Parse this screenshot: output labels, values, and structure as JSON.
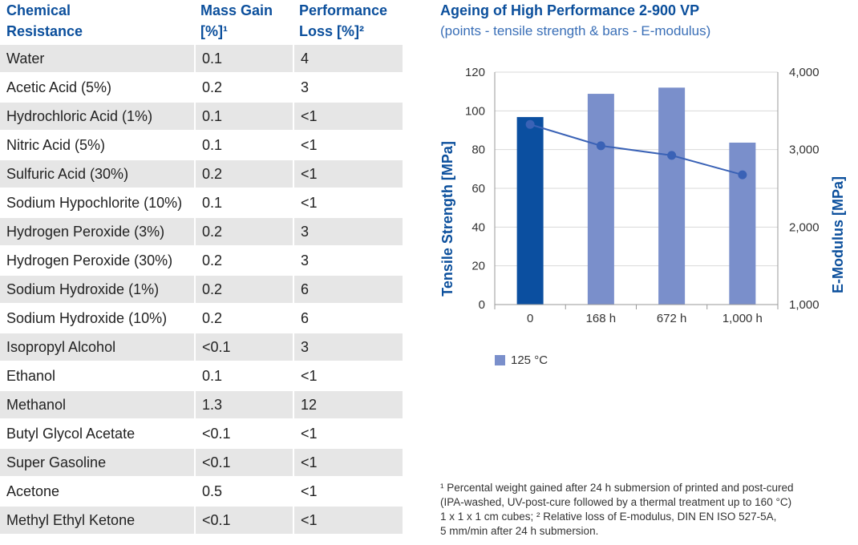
{
  "table": {
    "headers": {
      "chemical": [
        "Chemical",
        "Resistance"
      ],
      "mass_gain": [
        "Mass Gain",
        "[%]¹"
      ],
      "performance_loss": [
        "Performance",
        "Loss [%]²"
      ]
    },
    "rows": [
      {
        "chemical": "Water",
        "mass_gain": "0.1",
        "performance_loss": "4"
      },
      {
        "chemical": "Acetic Acid (5%)",
        "mass_gain": "0.2",
        "performance_loss": "3"
      },
      {
        "chemical": "Hydrochloric Acid (1%)",
        "mass_gain": "0.1",
        "performance_loss": "<1"
      },
      {
        "chemical": "Nitric Acid (5%)",
        "mass_gain": "0.1",
        "performance_loss": "<1"
      },
      {
        "chemical": "Sulfuric Acid (30%)",
        "mass_gain": "0.2",
        "performance_loss": "<1"
      },
      {
        "chemical": "Sodium Hypochlorite (10%)",
        "mass_gain": "0.1",
        "performance_loss": "<1"
      },
      {
        "chemical": "Hydrogen Peroxide (3%)",
        "mass_gain": "0.2",
        "performance_loss": "3"
      },
      {
        "chemical": "Hydrogen Peroxide (30%)",
        "mass_gain": "0.2",
        "performance_loss": "3"
      },
      {
        "chemical": "Sodium Hydroxide (1%)",
        "mass_gain": "0.2",
        "performance_loss": "6"
      },
      {
        "chemical": "Sodium Hydroxide (10%)",
        "mass_gain": "0.2",
        "performance_loss": "6"
      },
      {
        "chemical": "Isopropyl Alcohol",
        "mass_gain": "<0.1",
        "performance_loss": "3"
      },
      {
        "chemical": "Ethanol",
        "mass_gain": "0.1",
        "performance_loss": "<1"
      },
      {
        "chemical": "Methanol",
        "mass_gain": "1.3",
        "performance_loss": "12"
      },
      {
        "chemical": "Butyl Glycol Acetate",
        "mass_gain": "<0.1",
        "performance_loss": "<1"
      },
      {
        "chemical": "Super Gasoline",
        "mass_gain": "<0.1",
        "performance_loss": "<1"
      },
      {
        "chemical": "Acetone",
        "mass_gain": "0.5",
        "performance_loss": "<1"
      },
      {
        "chemical": "Methyl Ethyl Ketone",
        "mass_gain": "<0.1",
        "performance_loss": "<1"
      }
    ]
  },
  "colors": {
    "header_text": "#0b4f9c",
    "row_shade": "#e6e6e6",
    "bar_first": "#0b4fa0",
    "bar_other": "#7a8fcb",
    "line": "#3a62b6",
    "axis": "#999999",
    "grid": "#d9d9d9"
  },
  "chart_data": {
    "type": "bar",
    "title": "Ageing of High Performance 2-900 VP",
    "subtitle": "(points - tensile strength & bars - E-modulus)",
    "categories": [
      "0",
      "168 h",
      "672 h",
      "1,000 h"
    ],
    "series": [
      {
        "name": "125 °C",
        "kind": "bar",
        "axis": "right",
        "values": [
          3420,
          3720,
          3800,
          3090
        ]
      },
      {
        "kind": "line",
        "axis": "left",
        "values": [
          93,
          82,
          77,
          67
        ]
      }
    ],
    "ylabel_left": "Tensile Strength [MPa]",
    "ylabel_right": "E-Modulus [MPa]",
    "ylim_left": [
      0,
      120
    ],
    "ylim_right": [
      1000,
      4000
    ],
    "yticks_left": [
      {
        "value": 0,
        "label": "0"
      },
      {
        "value": 20,
        "label": "20"
      },
      {
        "value": 40,
        "label": "40"
      },
      {
        "value": 60,
        "label": "60"
      },
      {
        "value": 80,
        "label": "80"
      },
      {
        "value": 100,
        "label": "100"
      },
      {
        "value": 120,
        "label": "120"
      }
    ],
    "yticks_right": [
      {
        "value": 1000,
        "label": "1,000"
      },
      {
        "value": 2000,
        "label": "2,000"
      },
      {
        "value": 3000,
        "label": "3,000"
      },
      {
        "value": 4000,
        "label": "4,000"
      }
    ],
    "grid": true,
    "legend_position": "bottom-left"
  },
  "footnote": {
    "lines": [
      "¹ Percental weight gained after 24 h submersion of printed and post-cured",
      "(IPA-washed, UV-post-cure followed by a thermal treatment up to 160 °C)",
      "1 x 1 x 1 cm cubes; ² Relative loss of E-modulus, DIN EN ISO 527-5A,",
      "5 mm/min after 24 h submersion."
    ]
  }
}
